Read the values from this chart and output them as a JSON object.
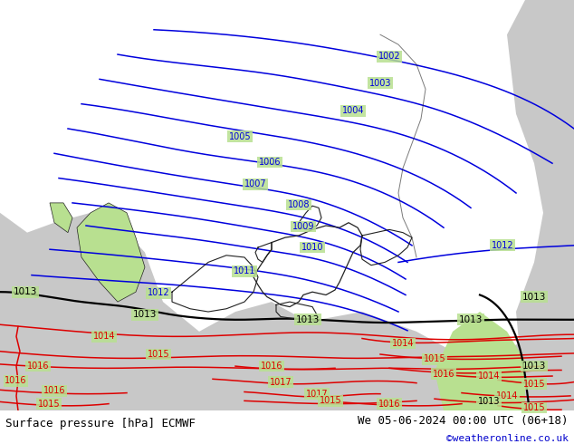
{
  "title_left": "Surface pressure [hPa] ECMWF",
  "title_right": "We 05-06-2024 00:00 UTC (06+18)",
  "copyright": "©weatheronline.co.uk",
  "bg_green": "#b8e090",
  "bg_grey": "#c8c8c8",
  "bg_white": "#e8e8e8",
  "border_color": "#222222",
  "blue_color": "#0000dd",
  "black_color": "#000000",
  "red_color": "#dd0000",
  "bottom_bar_color": "#ffffff",
  "copyright_color": "#0000cc",
  "font_size_bottom": 9,
  "font_size_copyright": 8,
  "fig_width": 6.34,
  "fig_height": 4.9,
  "dpi": 100
}
